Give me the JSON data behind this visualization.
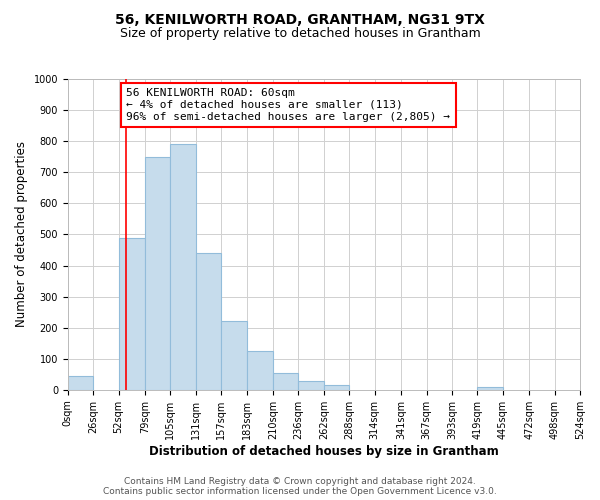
{
  "title_line1": "56, KENILWORTH ROAD, GRANTHAM, NG31 9TX",
  "title_line2": "Size of property relative to detached houses in Grantham",
  "xlabel": "Distribution of detached houses by size in Grantham",
  "ylabel": "Number of detached properties",
  "bar_color": "#c6dcec",
  "bar_edge_color": "#92bcda",
  "bar_left_edges": [
    0,
    26,
    52,
    79,
    105,
    131,
    157,
    183,
    210,
    236,
    262,
    288,
    314,
    341,
    367,
    393,
    419,
    445,
    472,
    498
  ],
  "bar_widths": [
    26,
    26,
    27,
    26,
    26,
    26,
    26,
    27,
    26,
    26,
    26,
    26,
    27,
    26,
    26,
    26,
    26,
    27,
    26,
    26
  ],
  "bar_heights": [
    45,
    0,
    490,
    750,
    790,
    440,
    220,
    125,
    55,
    30,
    15,
    0,
    0,
    0,
    0,
    0,
    10,
    0,
    0,
    0
  ],
  "x_tick_labels": [
    "0sqm",
    "26sqm",
    "52sqm",
    "79sqm",
    "105sqm",
    "131sqm",
    "157sqm",
    "183sqm",
    "210sqm",
    "236sqm",
    "262sqm",
    "288sqm",
    "314sqm",
    "341sqm",
    "367sqm",
    "393sqm",
    "419sqm",
    "445sqm",
    "472sqm",
    "498sqm",
    "524sqm"
  ],
  "x_tick_positions": [
    0,
    26,
    52,
    79,
    105,
    131,
    157,
    183,
    210,
    236,
    262,
    288,
    314,
    341,
    367,
    393,
    419,
    445,
    472,
    498,
    524
  ],
  "ylim": [
    0,
    1000
  ],
  "xlim": [
    0,
    524
  ],
  "red_line_x": 60,
  "annotation_text": "56 KENILWORTH ROAD: 60sqm\n← 4% of detached houses are smaller (113)\n96% of semi-detached houses are larger (2,805) →",
  "footer_line1": "Contains HM Land Registry data © Crown copyright and database right 2024.",
  "footer_line2": "Contains public sector information licensed under the Open Government Licence v3.0.",
  "background_color": "#ffffff",
  "grid_color": "#d0d0d0",
  "title_fontsize": 10,
  "subtitle_fontsize": 9,
  "axis_label_fontsize": 8.5,
  "tick_fontsize": 7,
  "annotation_fontsize": 8,
  "footer_fontsize": 6.5
}
